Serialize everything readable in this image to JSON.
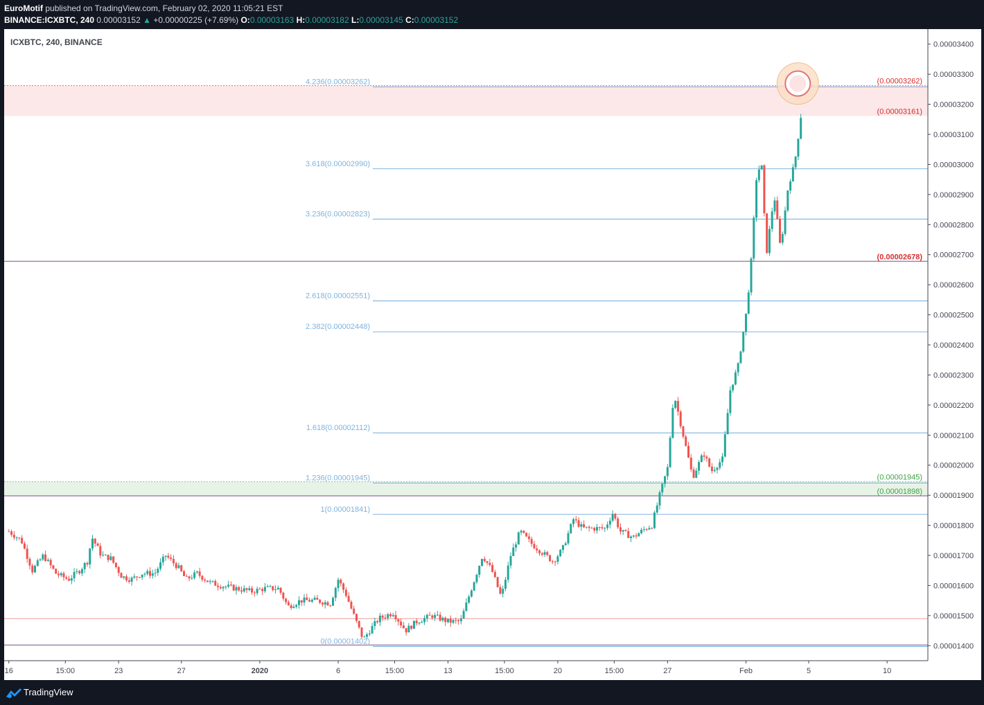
{
  "header": {
    "author": "EuroMotif",
    "published_text": "published on TradingView.com, February 02, 2020 11:05:21 EST",
    "symbol": "BINANCE:ICXBTC, 240",
    "last": "0.00003152",
    "change_arrow": "▲",
    "change": "+0.00000225 (+7.69%)",
    "o_label": "O:",
    "o_value": "0.00003163",
    "h_label": "H:",
    "h_value": "0.00003182",
    "l_label": "L:",
    "l_value": "0.00003145",
    "c_label": "C:",
    "c_value": "0.00003152"
  },
  "chart_title": "ICXBTC, 240, BINANCE",
  "footer": {
    "brand": "TradingView"
  },
  "colors": {
    "up": "#26a69a",
    "down": "#ef5350",
    "fib": "#7fb2dc",
    "fib_line": "#5b9bd5",
    "red_zone": "#fce8e8",
    "green_zone": "#e8f3e8",
    "purple_line": "#7b4e8c",
    "red_label": "#d32f2f",
    "green_label": "#43a047"
  },
  "chart_data": {
    "type": "candlestick",
    "title": "ICXBTC, 240, BINANCE",
    "ylim": [
      1.35e-05,
      3.45e-05
    ],
    "y_ticks": [
      "0.00003400",
      "0.00003300",
      "0.00003200",
      "0.00003100",
      "0.00003000",
      "0.00002900",
      "0.00002800",
      "0.00002700",
      "0.00002600",
      "0.00002500",
      "0.00002400",
      "0.00002300",
      "0.00002200",
      "0.00002100",
      "0.00002000",
      "0.00001900",
      "0.00001800",
      "0.00001700",
      "0.00001600",
      "0.00001500",
      "0.00001400"
    ],
    "y_tick_values": [
      3.4e-05,
      3.3e-05,
      3.2e-05,
      3.1e-05,
      3e-05,
      2.9e-05,
      2.8e-05,
      2.7e-05,
      2.6e-05,
      2.5e-05,
      2.4e-05,
      2.3e-05,
      2.2e-05,
      2.1e-05,
      2e-05,
      1.9e-05,
      1.8e-05,
      1.7e-05,
      1.6e-05,
      1.5e-05,
      1.4e-05
    ],
    "x_ticks": [
      {
        "label": "16",
        "day": 0
      },
      {
        "label": "15:00",
        "day": 3.6
      },
      {
        "label": "23",
        "day": 7
      },
      {
        "label": "27",
        "day": 11
      },
      {
        "label": "2020",
        "day": 16
      },
      {
        "label": "6",
        "day": 21
      },
      {
        "label": "15:00",
        "day": 24.6
      },
      {
        "label": "13",
        "day": 28
      },
      {
        "label": "15:00",
        "day": 31.6
      },
      {
        "label": "20",
        "day": 35
      },
      {
        "label": "15:00",
        "day": 38.6
      },
      {
        "label": "27",
        "day": 42
      },
      {
        "label": "Feb",
        "day": 47
      },
      {
        "label": "5",
        "day": 51
      },
      {
        "label": "10",
        "day": 56
      }
    ],
    "x_range_days": [
      -0.3,
      58.6
    ],
    "fib_levels": [
      {
        "label": "4.236(0.00003262)",
        "value": 3.262e-05
      },
      {
        "label": "3.618(0.00002990)",
        "value": 2.99e-05
      },
      {
        "label": "3.236(0.00002823)",
        "value": 2.823e-05
      },
      {
        "label": "2.618(0.00002551)",
        "value": 2.551e-05
      },
      {
        "label": "2.382(0.00002448)",
        "value": 2.448e-05
      },
      {
        "label": "1.618(0.00002112)",
        "value": 2.112e-05
      },
      {
        "label": "1.236(0.00001945)",
        "value": 1.945e-05
      },
      {
        "label": "1(0.00001841)",
        "value": 1.841e-05
      },
      {
        "label": "0(0.00001402)",
        "value": 1.402e-05
      }
    ],
    "zones": [
      {
        "top": 3.262e-05,
        "bottom": 3.161e-05,
        "kind": "red",
        "top_label": "(0.00003262)",
        "bottom_label": "(0.00003161)"
      },
      {
        "top": 1.945e-05,
        "bottom": 1.898e-05,
        "kind": "green",
        "top_label": "(0.00001945)",
        "bottom_label": "(0.00001898)"
      }
    ],
    "purple_levels": [
      2.678e-05,
      1.898e-05,
      1.402e-05
    ],
    "purple_label": "(0.00002678)",
    "red_level": 1.49e-05,
    "anchors": [
      [
        0,
        1780
      ],
      [
        0.8,
        1750
      ],
      [
        1.5,
        1650
      ],
      [
        2.2,
        1700
      ],
      [
        3.0,
        1640
      ],
      [
        3.8,
        1620
      ],
      [
        4.5,
        1650
      ],
      [
        5.0,
        1680
      ],
      [
        5.3,
        1760
      ],
      [
        5.9,
        1700
      ],
      [
        6.5,
        1690
      ],
      [
        7.2,
        1630
      ],
      [
        7.8,
        1620
      ],
      [
        8.5,
        1640
      ],
      [
        9.3,
        1640
      ],
      [
        10.0,
        1700
      ],
      [
        10.8,
        1660
      ],
      [
        11.3,
        1620
      ],
      [
        12.0,
        1640
      ],
      [
        12.8,
        1610
      ],
      [
        13.5,
        1600
      ],
      [
        14.5,
        1590
      ],
      [
        15.5,
        1580
      ],
      [
        16.3,
        1590
      ],
      [
        17.2,
        1590
      ],
      [
        17.8,
        1530
      ],
      [
        18.6,
        1550
      ],
      [
        19.6,
        1550
      ],
      [
        20.5,
        1540
      ],
      [
        21.0,
        1620
      ],
      [
        21.5,
        1570
      ],
      [
        22.0,
        1500
      ],
      [
        22.6,
        1420
      ],
      [
        23.0,
        1450
      ],
      [
        23.6,
        1490
      ],
      [
        24.5,
        1510
      ],
      [
        25.3,
        1450
      ],
      [
        26.0,
        1480
      ],
      [
        27.0,
        1500
      ],
      [
        28.0,
        1480
      ],
      [
        28.8,
        1480
      ],
      [
        29.5,
        1590
      ],
      [
        30.2,
        1700
      ],
      [
        30.8,
        1650
      ],
      [
        31.4,
        1560
      ],
      [
        32.0,
        1700
      ],
      [
        32.6,
        1780
      ],
      [
        33.3,
        1740
      ],
      [
        34.0,
        1710
      ],
      [
        34.7,
        1680
      ],
      [
        35.3,
        1720
      ],
      [
        36.0,
        1820
      ],
      [
        36.6,
        1790
      ],
      [
        37.3,
        1790
      ],
      [
        38.0,
        1790
      ],
      [
        38.5,
        1840
      ],
      [
        39.0,
        1780
      ],
      [
        39.8,
        1760
      ],
      [
        40.6,
        1790
      ],
      [
        41.0,
        1800
      ],
      [
        41.5,
        1900
      ],
      [
        42.0,
        1990
      ],
      [
        42.4,
        2240
      ],
      [
        43.0,
        2100
      ],
      [
        43.6,
        1960
      ],
      [
        44.3,
        2040
      ],
      [
        44.8,
        1980
      ],
      [
        45.5,
        2020
      ],
      [
        46.0,
        2250
      ],
      [
        46.5,
        2330
      ],
      [
        47.0,
        2500
      ],
      [
        47.3,
        2650
      ],
      [
        47.7,
        2980
      ],
      [
        48.0,
        2990
      ],
      [
        48.3,
        2700
      ],
      [
        48.8,
        2900
      ],
      [
        49.2,
        2720
      ],
      [
        49.7,
        2930
      ],
      [
        50.1,
        3000
      ],
      [
        50.5,
        3160
      ]
    ]
  }
}
